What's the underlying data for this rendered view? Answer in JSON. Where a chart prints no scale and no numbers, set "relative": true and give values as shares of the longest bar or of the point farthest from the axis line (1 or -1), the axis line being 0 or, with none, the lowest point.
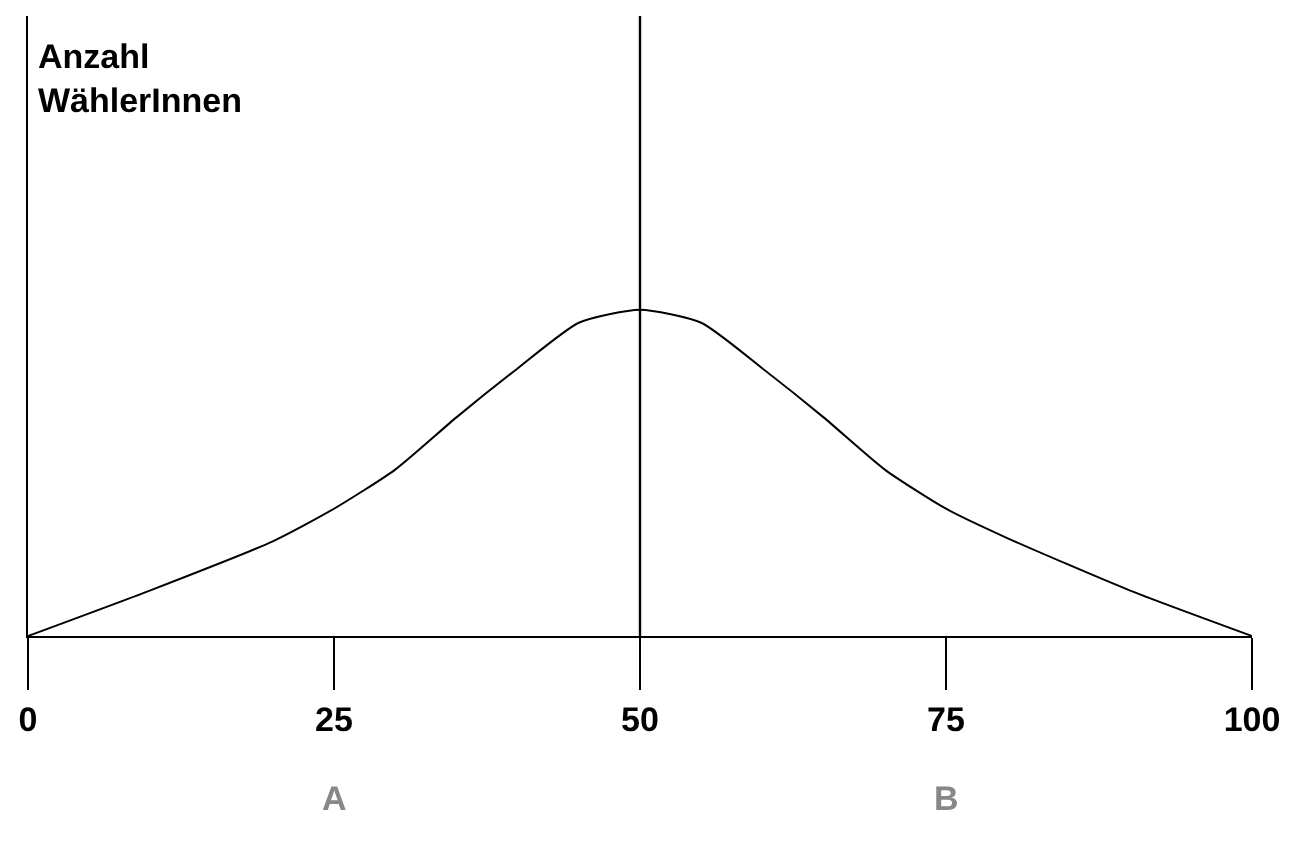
{
  "chart_data": {
    "type": "line",
    "relative": true,
    "x": [
      0,
      10,
      20,
      25,
      30,
      35,
      40,
      45,
      50,
      55,
      60,
      65,
      70,
      75,
      80,
      90,
      100
    ],
    "series": [
      {
        "color": "#000000",
        "values": [
          0,
          0.14,
          0.29,
          0.39,
          0.51,
          0.67,
          0.82,
          0.96,
          1,
          0.96,
          0.82,
          0.67,
          0.51,
          0.39,
          0.3,
          0.14,
          0
        ]
      }
    ],
    "xlim": [
      0,
      100
    ],
    "xticks": [
      0,
      25,
      50,
      75,
      100
    ],
    "ref_lines": [
      {
        "axis": "x",
        "value": 50,
        "color": "#000000"
      }
    ],
    "annotations": [
      "Anzahl WählerInnen",
      "A",
      "B"
    ],
    "legend": false,
    "marker": "none",
    "line_style": "solid"
  }
}
